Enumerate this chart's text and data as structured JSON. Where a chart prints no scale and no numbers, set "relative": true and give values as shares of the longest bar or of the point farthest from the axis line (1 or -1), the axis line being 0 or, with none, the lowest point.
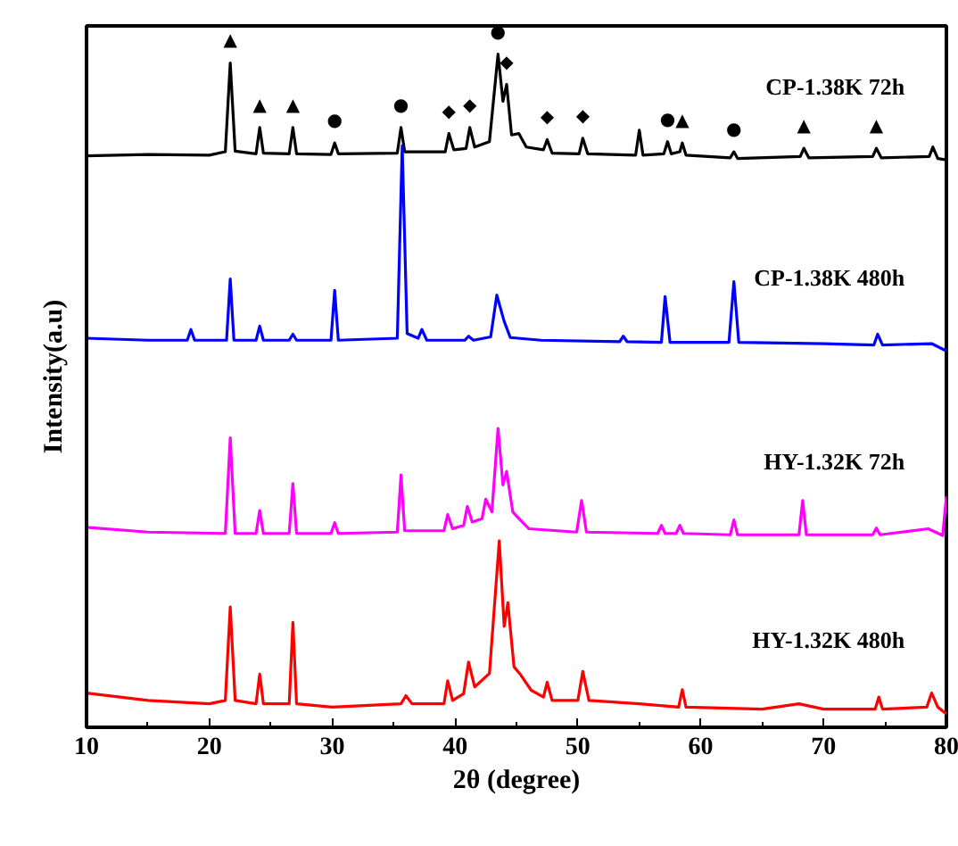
{
  "chart_data": {
    "type": "line",
    "relative": true,
    "xlabel": "2θ (degree)",
    "ylabel": "Intensity(a.u)",
    "xlim": [
      10,
      80
    ],
    "xticks": [
      10,
      20,
      30,
      40,
      50,
      60,
      70,
      80
    ],
    "tick_labels": "x",
    "grid": false,
    "legend": false,
    "marker": "none",
    "line_style": "solid",
    "series": [
      {
        "name": "CP-1.38K   72h",
        "color": "#000000",
        "x": [
          10,
          15,
          20,
          21.3,
          21.7,
          22.1,
          23.8,
          24.1,
          24.4,
          26.5,
          26.8,
          27.1,
          29.9,
          30.2,
          30.5,
          35.3,
          35.6,
          35.9,
          39.2,
          39.5,
          39.9,
          40.9,
          41.2,
          41.6,
          42.8,
          43.5,
          43.9,
          44.2,
          44.6,
          45.2,
          45.8,
          47.2,
          47.5,
          47.9,
          50.1,
          50.4,
          50.8,
          54.7,
          55.0,
          55.3,
          57.0,
          57.3,
          57.6,
          58.3,
          58.5,
          58.8,
          62.4,
          62.7,
          63.0,
          68.1,
          68.4,
          68.8,
          74.0,
          74.3,
          74.7,
          78.6,
          78.9,
          79.3,
          80
        ],
        "values": [
          0.849,
          0.851,
          0.85,
          0.855,
          0.987,
          0.856,
          0.852,
          0.891,
          0.853,
          0.852,
          0.891,
          0.852,
          0.851,
          0.868,
          0.852,
          0.853,
          0.891,
          0.855,
          0.855,
          0.882,
          0.858,
          0.86,
          0.891,
          0.862,
          0.87,
          1.0,
          0.93,
          0.955,
          0.88,
          0.882,
          0.862,
          0.858,
          0.873,
          0.853,
          0.852,
          0.875,
          0.852,
          0.85,
          0.887,
          0.85,
          0.852,
          0.87,
          0.852,
          0.855,
          0.868,
          0.85,
          0.846,
          0.855,
          0.845,
          0.848,
          0.86,
          0.846,
          0.848,
          0.86,
          0.846,
          0.848,
          0.862,
          0.845,
          0.843
        ]
      },
      {
        "name": "CP-1.38K   480h",
        "color": "#0000ff",
        "x": [
          10,
          15,
          18.2,
          18.5,
          18.8,
          21.4,
          21.7,
          22.0,
          23.8,
          24.1,
          24.4,
          26.5,
          26.8,
          27.1,
          29.9,
          30.2,
          30.5,
          35.3,
          35.7,
          36.1,
          37.0,
          37.3,
          37.7,
          40.8,
          41.1,
          41.5,
          42.9,
          43.4,
          44.0,
          44.5,
          47.0,
          53.4,
          53.7,
          54.0,
          56.8,
          57.1,
          57.5,
          62.3,
          62.7,
          63.1,
          70,
          74.1,
          74.4,
          74.8,
          78.8,
          80
        ],
        "values": [
          0.578,
          0.575,
          0.575,
          0.591,
          0.575,
          0.575,
          0.666,
          0.575,
          0.575,
          0.596,
          0.575,
          0.575,
          0.584,
          0.575,
          0.575,
          0.649,
          0.575,
          0.578,
          0.864,
          0.585,
          0.578,
          0.591,
          0.575,
          0.575,
          0.581,
          0.575,
          0.58,
          0.642,
          0.603,
          0.579,
          0.575,
          0.573,
          0.581,
          0.573,
          0.572,
          0.64,
          0.572,
          0.572,
          0.662,
          0.572,
          0.57,
          0.568,
          0.584,
          0.568,
          0.57,
          0.559
        ]
      },
      {
        "name": "HY-1.32K   72h",
        "color": "#ff00ff",
        "x": [
          10,
          15,
          21.3,
          21.7,
          22.1,
          23.8,
          24.1,
          24.4,
          26.5,
          26.8,
          27.1,
          29.9,
          30.2,
          30.5,
          35.3,
          35.6,
          35.9,
          39.1,
          39.4,
          39.8,
          40.7,
          41.0,
          41.4,
          42.2,
          42.5,
          43.0,
          43.5,
          43.9,
          44.2,
          44.7,
          45.2,
          46,
          49.9,
          50.3,
          50.7,
          56.5,
          56.8,
          57.1,
          58.0,
          58.3,
          58.6,
          62.4,
          62.7,
          63.0,
          68.0,
          68.3,
          68.6,
          74.0,
          74.3,
          74.6,
          78.5,
          79.7,
          80
        ],
        "values": [
          0.297,
          0.29,
          0.288,
          0.43,
          0.288,
          0.288,
          0.322,
          0.288,
          0.288,
          0.362,
          0.288,
          0.288,
          0.304,
          0.288,
          0.29,
          0.375,
          0.292,
          0.292,
          0.316,
          0.295,
          0.3,
          0.328,
          0.305,
          0.31,
          0.339,
          0.32,
          0.444,
          0.36,
          0.38,
          0.32,
          0.31,
          0.295,
          0.29,
          0.337,
          0.29,
          0.288,
          0.3,
          0.288,
          0.288,
          0.3,
          0.288,
          0.286,
          0.308,
          0.286,
          0.286,
          0.337,
          0.286,
          0.286,
          0.296,
          0.286,
          0.295,
          0.285,
          0.343
        ]
      },
      {
        "name": "HY-1.32K   480h",
        "color": "#ff0000",
        "x": [
          10,
          15,
          20,
          21.3,
          21.7,
          22.1,
          23.8,
          24.1,
          24.4,
          26.5,
          26.8,
          27.1,
          30,
          35.6,
          36.0,
          36.5,
          39.1,
          39.4,
          39.8,
          40.7,
          41.1,
          41.6,
          42.8,
          43.6,
          44.0,
          44.3,
          44.8,
          45.3,
          46.2,
          47.2,
          47.5,
          47.9,
          50.0,
          50.4,
          50.9,
          55,
          58.2,
          58.5,
          58.8,
          65,
          68.0,
          70,
          74.2,
          74.5,
          74.8,
          78.4,
          78.8,
          79.3,
          80
        ],
        "values": [
          0.051,
          0.04,
          0.035,
          0.04,
          0.179,
          0.04,
          0.035,
          0.079,
          0.035,
          0.035,
          0.156,
          0.035,
          0.03,
          0.035,
          0.047,
          0.035,
          0.035,
          0.069,
          0.04,
          0.05,
          0.097,
          0.06,
          0.08,
          0.277,
          0.15,
          0.185,
          0.09,
          0.079,
          0.055,
          0.045,
          0.067,
          0.04,
          0.04,
          0.083,
          0.04,
          0.035,
          0.03,
          0.056,
          0.03,
          0.027,
          0.035,
          0.027,
          0.027,
          0.045,
          0.027,
          0.03,
          0.051,
          0.03,
          0.02
        ]
      }
    ],
    "annotations": [
      {
        "text": "▲",
        "x": 21.7,
        "y": 0.987
      },
      {
        "text": "▲",
        "x": 24.1,
        "y": 0.891
      },
      {
        "text": "▲",
        "x": 26.8,
        "y": 0.891
      },
      {
        "text": "●",
        "x": 30.2,
        "y": 0.868
      },
      {
        "text": "●",
        "x": 35.6,
        "y": 0.891
      },
      {
        "text": "◆",
        "x": 39.5,
        "y": 0.882
      },
      {
        "text": "◆",
        "x": 41.2,
        "y": 0.891
      },
      {
        "text": "●",
        "x": 43.5,
        "y": 1.0
      },
      {
        "text": "◆",
        "x": 44.2,
        "y": 0.955
      },
      {
        "text": "◆",
        "x": 47.5,
        "y": 0.873
      },
      {
        "text": "◆",
        "x": 50.4,
        "y": 0.875
      },
      {
        "text": "●",
        "x": 57.3,
        "y": 0.87
      },
      {
        "text": "▲",
        "x": 58.5,
        "y": 0.868
      },
      {
        "text": "●",
        "x": 62.7,
        "y": 0.855
      },
      {
        "text": "▲",
        "x": 68.4,
        "y": 0.86
      },
      {
        "text": "▲",
        "x": 74.3,
        "y": 0.86
      }
    ]
  }
}
